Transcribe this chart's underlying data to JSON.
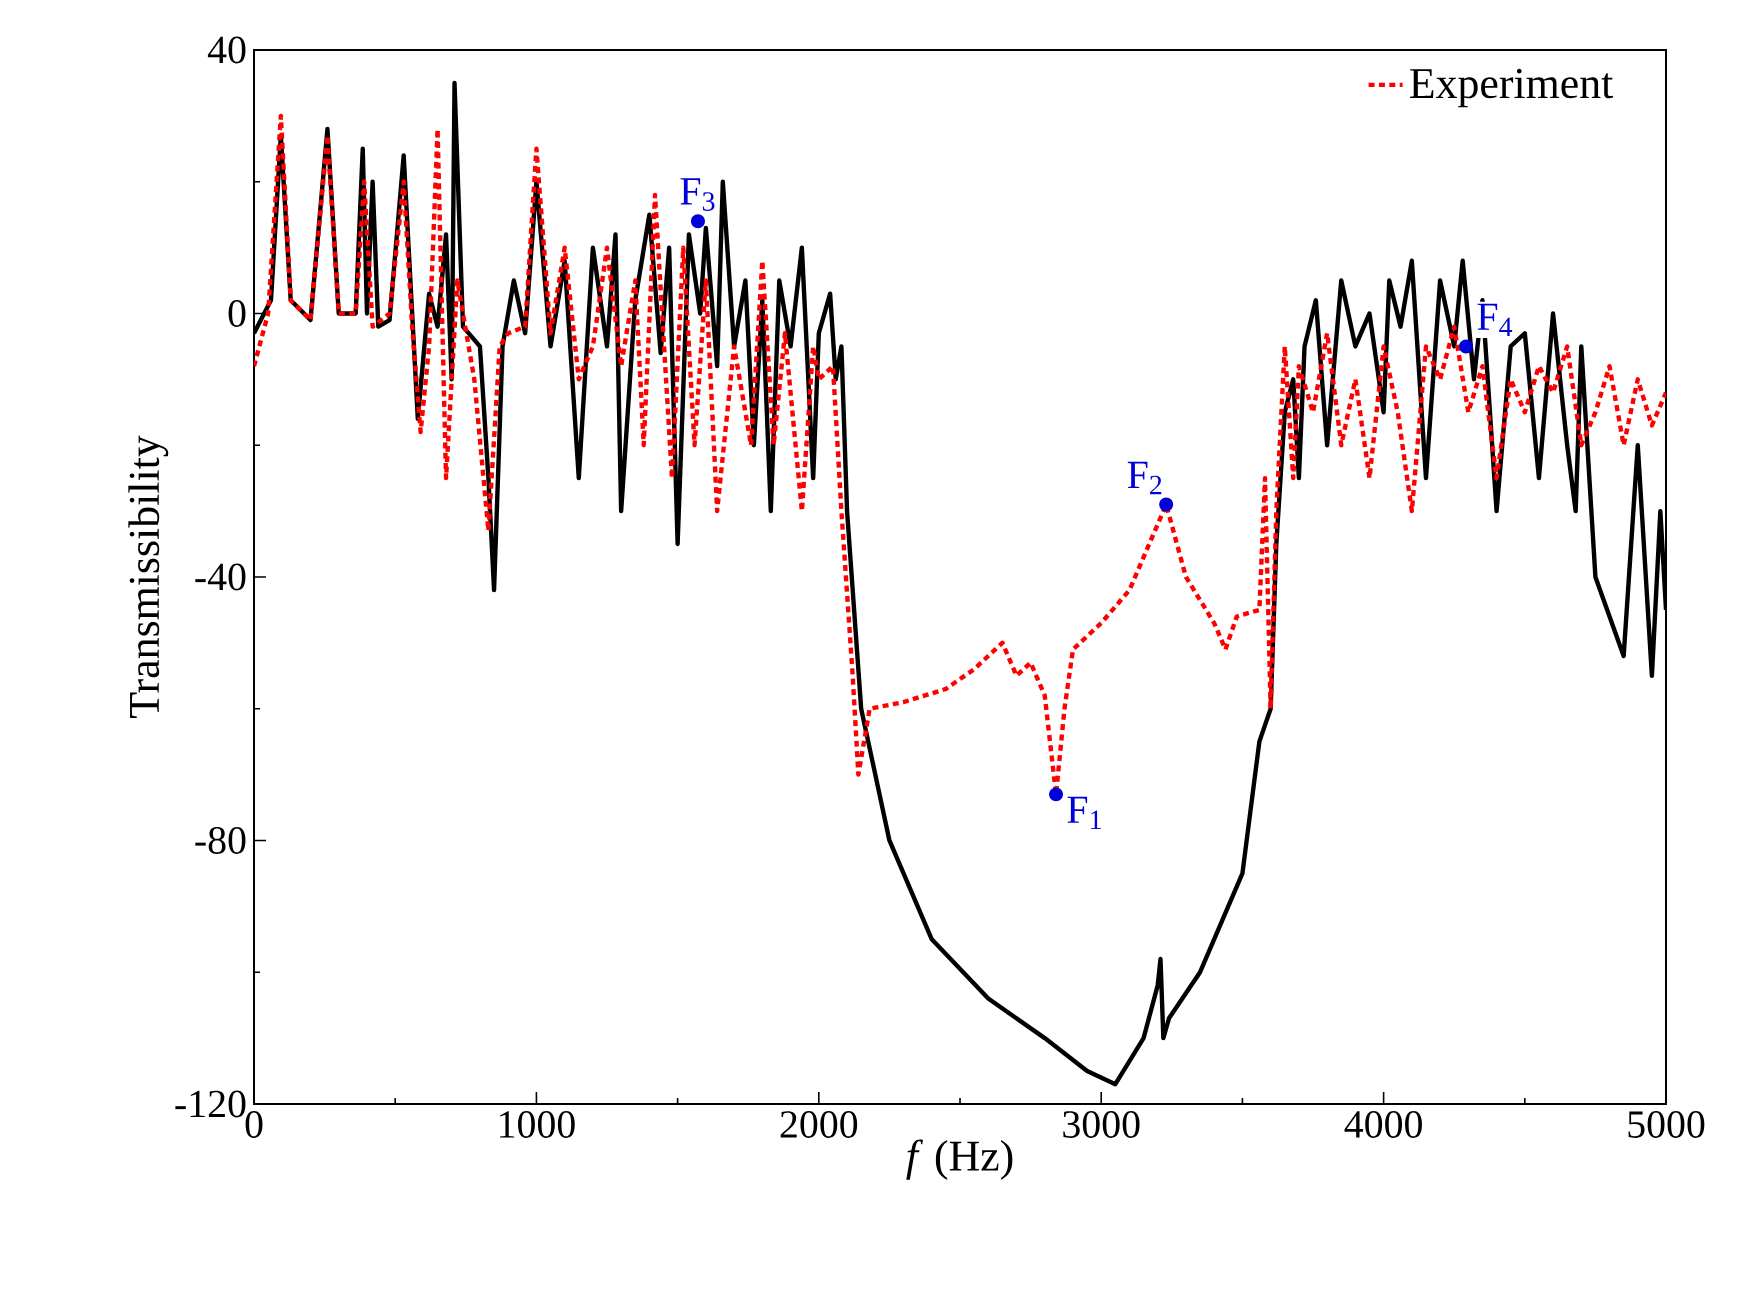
{
  "chart_data": {
    "type": "line",
    "xlabel": "*f* (Hz)",
    "ylabel": "Transmissibility",
    "x": [
      0,
      60,
      95,
      130,
      200,
      260,
      300,
      360,
      385,
      400,
      420,
      440,
      480,
      530,
      560,
      580,
      620,
      650,
      680,
      700,
      710,
      740,
      800,
      830,
      850,
      880,
      920,
      960,
      1000,
      1050,
      1100,
      1150,
      1200,
      1250,
      1280,
      1300,
      1350,
      1400,
      1440,
      1470,
      1500,
      1540,
      1580,
      1600,
      1640,
      1660,
      1700,
      1740,
      1770,
      1800,
      1830,
      1860,
      1900,
      1940,
      1980,
      2000,
      2040,
      2060,
      2080,
      2100,
      2150,
      2250,
      2400,
      2600,
      2800,
      2950,
      3050,
      3150,
      3200,
      3210,
      3220,
      3240,
      3350,
      3500,
      3560,
      3600,
      3620,
      3650,
      3680,
      3700,
      3720,
      3760,
      3800,
      3850,
      3900,
      3950,
      4000,
      4020,
      4060,
      4100,
      4150,
      4200,
      4250,
      4280,
      4320,
      4350,
      4400,
      4450,
      4500,
      4550,
      4600,
      4650,
      4680,
      4700,
      4750,
      4850,
      4900,
      4950,
      4980,
      5000
    ],
    "series": [
      {
        "color": "#000000",
        "line_style": "solid",
        "values": [
          -3,
          2,
          27,
          2,
          -1,
          28,
          0,
          0,
          25,
          0,
          20,
          -2,
          -1,
          24,
          0,
          -16,
          3,
          -2,
          12,
          -10,
          35,
          -2,
          -5,
          -25,
          -42,
          -5,
          5,
          -3,
          20,
          -5,
          8,
          -25,
          10,
          -5,
          12,
          -30,
          2,
          15,
          -6,
          10,
          -35,
          12,
          0,
          13,
          -8,
          20,
          -5,
          5,
          -20,
          2,
          -30,
          5,
          -5,
          10,
          -25,
          -3,
          3,
          -10,
          -5,
          -30,
          -60,
          -80,
          -95,
          -104,
          -110,
          -115,
          -117,
          -110,
          -102,
          -98,
          -110,
          -107,
          -100,
          -85,
          -65,
          -60,
          -35,
          -15,
          -10,
          -25,
          -5,
          2,
          -20,
          5,
          -5,
          0,
          -15,
          5,
          -2,
          8,
          -25,
          5,
          -5,
          8,
          -10,
          2,
          -30,
          -5,
          -3,
          -25,
          0,
          -20,
          -30,
          -5,
          -40,
          -52,
          -20,
          -55,
          -30,
          -45
        ]
      },
      {
        "name": "Experiment",
        "color": "#ff0000",
        "line_style": "dotted",
        "x": [
          0,
          50,
          95,
          130,
          200,
          260,
          300,
          360,
          390,
          420,
          480,
          530,
          560,
          590,
          620,
          650,
          680,
          720,
          780,
          830,
          870,
          900,
          960,
          1000,
          1050,
          1100,
          1150,
          1200,
          1250,
          1300,
          1350,
          1380,
          1420,
          1480,
          1520,
          1560,
          1600,
          1640,
          1700,
          1760,
          1800,
          1840,
          1880,
          1940,
          1980,
          2000,
          2050,
          2080,
          2120,
          2140,
          2180,
          2300,
          2450,
          2550,
          2650,
          2700,
          2750,
          2800,
          2840,
          2870,
          2900,
          3000,
          3100,
          3230,
          3300,
          3400,
          3440,
          3480,
          3560,
          3580,
          3600,
          3620,
          3650,
          3680,
          3700,
          3750,
          3800,
          3850,
          3900,
          3950,
          4000,
          4050,
          4100,
          4150,
          4200,
          4250,
          4300,
          4350,
          4400,
          4450,
          4500,
          4550,
          4600,
          4650,
          4700,
          4750,
          4800,
          4850,
          4900,
          4950,
          5000
        ],
        "values": [
          -8,
          0,
          30,
          2,
          -1,
          27,
          0,
          0,
          20,
          -2,
          0,
          20,
          -2,
          -18,
          -5,
          28,
          -25,
          5,
          -10,
          -33,
          -5,
          -3,
          -2,
          25,
          -3,
          10,
          -10,
          -5,
          10,
          -8,
          5,
          -20,
          18,
          -25,
          10,
          -20,
          5,
          -30,
          -5,
          -20,
          8,
          -20,
          -3,
          -30,
          -5,
          -10,
          -8,
          -30,
          -55,
          -70,
          -60,
          -59,
          -57,
          -54,
          -50,
          -55,
          -53,
          -58,
          -73,
          -60,
          -51,
          -47,
          -42,
          -29,
          -40,
          -47,
          -51,
          -46,
          -45,
          -25,
          -60,
          -30,
          -5,
          -25,
          -8,
          -15,
          -3,
          -20,
          -10,
          -25,
          -5,
          -15,
          -30,
          -5,
          -10,
          -2,
          -15,
          -8,
          -25,
          -10,
          -15,
          -8,
          -12,
          -5,
          -20,
          -15,
          -8,
          -20,
          -10,
          -17,
          -12
        ]
      }
    ],
    "xlim": [
      0,
      5000
    ],
    "xticks": [
      0,
      1000,
      2000,
      3000,
      4000,
      5000
    ],
    "ylim": [
      -120,
      40
    ],
    "yticks": [
      -120,
      -80,
      -40,
      0,
      40
    ],
    "legend": "top right",
    "annotations": [
      {
        "text": "F$_{1}$",
        "x": 2840,
        "y": -73
      },
      {
        "text": "F$_{2}$",
        "x": 3230,
        "y": -29
      },
      {
        "text": "F$_{3}$",
        "x": 1572,
        "y": 14
      },
      {
        "text": "F$_{4}$",
        "x": 4292,
        "y": -5
      }
    ]
  }
}
